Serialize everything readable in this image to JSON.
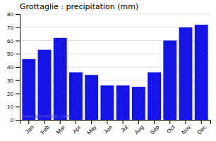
{
  "chart_data": {
    "type": "bar",
    "title": "Grottaglie : precipitation (mm)",
    "categories": [
      "Jan",
      "Feb",
      "Mar",
      "Apr",
      "May",
      "Jun",
      "Jul",
      "Aug",
      "Sep",
      "Oct",
      "Nov",
      "Dec"
    ],
    "values": [
      46,
      53,
      62,
      36,
      34,
      26,
      26,
      25,
      36,
      60,
      70,
      72
    ],
    "color": "#1414e6",
    "ylim": [
      0,
      80
    ],
    "yticks": [
      0,
      10,
      20,
      30,
      40,
      50,
      60,
      70,
      80
    ],
    "grid": true,
    "annotations": [
      {
        "text": "www.allmetsat.com",
        "color": "#5555dd"
      }
    ]
  }
}
